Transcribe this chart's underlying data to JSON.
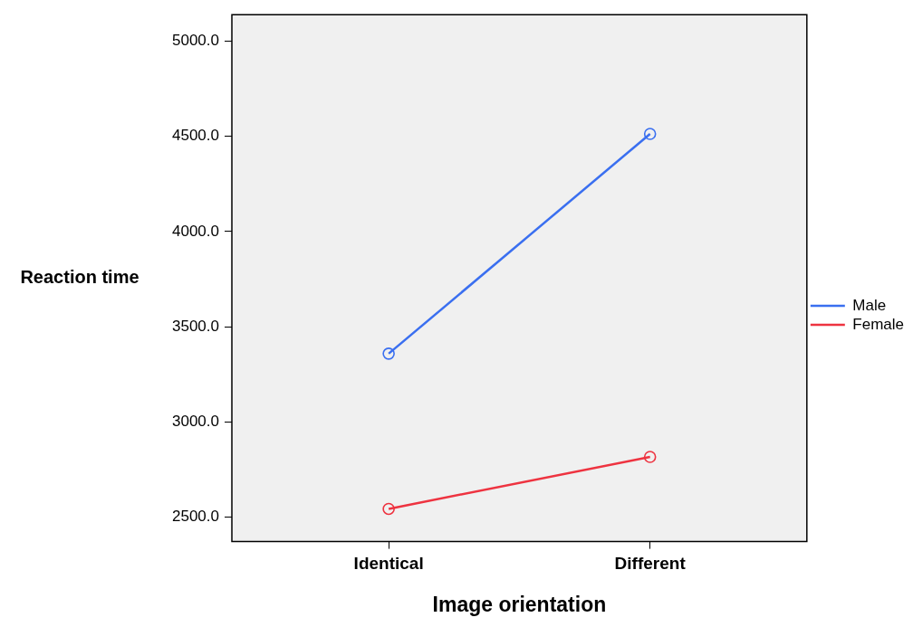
{
  "chart_data": {
    "type": "line",
    "xlabel": "Image orientation",
    "ylabel": "Reaction time",
    "categories": [
      "Identical",
      "Different"
    ],
    "series": [
      {
        "name": "Male",
        "color": "#3a6ff0",
        "values": [
          3358,
          4513
        ]
      },
      {
        "name": "Female",
        "color": "#ee3340",
        "values": [
          2542,
          2815
        ]
      }
    ],
    "ylim": [
      2370,
      5140
    ],
    "yticks": [
      {
        "value": 2500,
        "label": "2500.0"
      },
      {
        "value": 3000,
        "label": "3000.0"
      },
      {
        "value": 3500,
        "label": "3500.0"
      },
      {
        "value": 4000,
        "label": "4000.0"
      },
      {
        "value": 4500,
        "label": "4500.0"
      },
      {
        "value": 5000,
        "label": "5000.0"
      }
    ],
    "marker": "circle",
    "line_style": "solid",
    "legend": "right",
    "grid": false
  }
}
